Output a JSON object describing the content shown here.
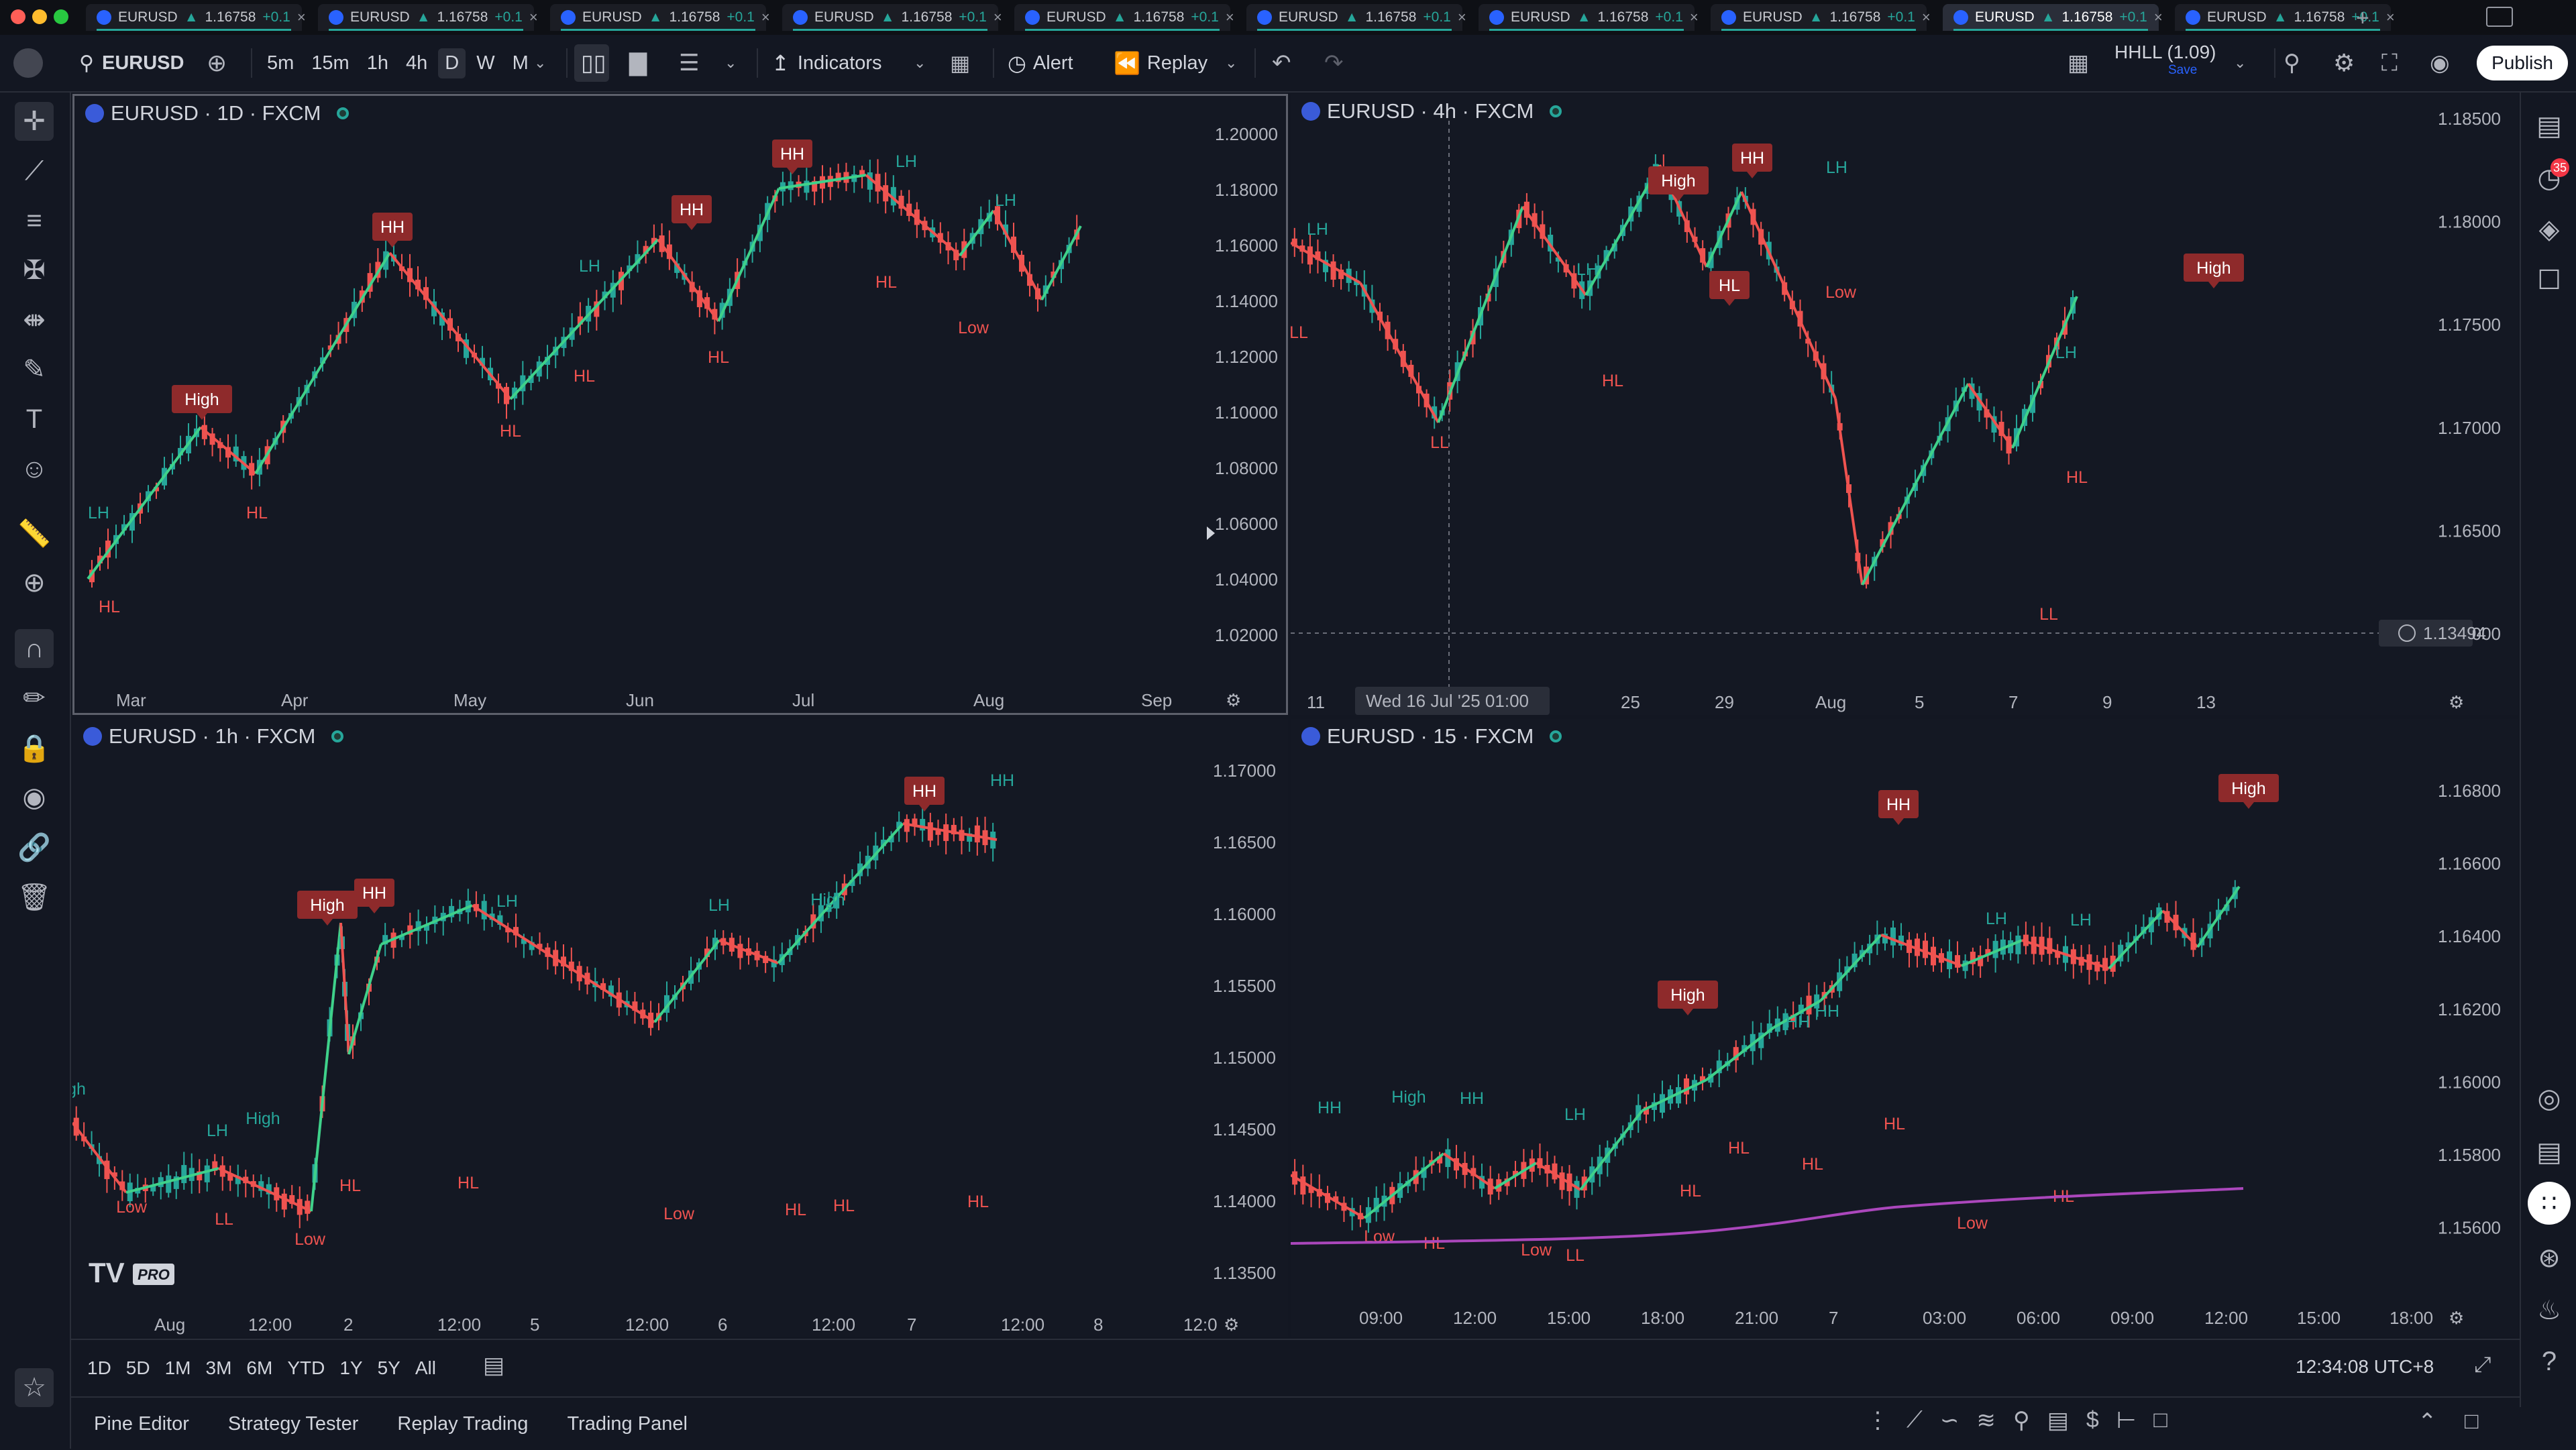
{
  "window": {
    "tabs": [
      {
        "symbol": "EURUSD",
        "price": "1.16758",
        "change": "+0.1"
      },
      {
        "symbol": "EURUSD",
        "price": "1.16758",
        "change": "+0.1"
      },
      {
        "symbol": "EURUSD",
        "price": "1.16758",
        "change": "+0.1"
      },
      {
        "symbol": "EURUSD",
        "price": "1.16758",
        "change": "+0.1"
      },
      {
        "symbol": "EURUSD",
        "price": "1.16758",
        "change": "+0.1"
      },
      {
        "symbol": "EURUSD",
        "price": "1.16758",
        "change": "+0.1"
      },
      {
        "symbol": "EURUSD",
        "price": "1.16758",
        "change": "+0.1"
      },
      {
        "symbol": "EURUSD",
        "price": "1.16758",
        "change": "+0.1"
      },
      {
        "symbol": "EURUSD",
        "price": "1.16758",
        "change": "+0.1"
      },
      {
        "symbol": "EURUSD",
        "price": "1.16758",
        "change": "+0.1"
      }
    ],
    "active_tab_index": 8
  },
  "toolbar": {
    "symbol": "EURUSD",
    "intervals": [
      "5m",
      "15m",
      "1h",
      "4h",
      "D",
      "W",
      "M"
    ],
    "active_interval": "D",
    "indicators_label": "Indicators",
    "alert_label": "Alert",
    "replay_label": "Replay",
    "layout_name": "HHLL (1.09)",
    "layout_sub": "Save",
    "publish_label": "Publish"
  },
  "right_panel": {
    "notification_count": "35"
  },
  "panes": [
    {
      "id": "p1",
      "title": "EURUSD · 1D · FXCM",
      "price_labels": [
        "1.20000",
        "1.18000",
        "1.16000",
        "1.14000",
        "1.12000",
        "1.10000",
        "1.08000",
        "1.06000",
        "1.04000",
        "1.02000"
      ],
      "time_labels": [
        "Mar",
        "Apr",
        "May",
        "Jun",
        "Jul",
        "Aug",
        "Sep"
      ],
      "tags": [
        {
          "text": "LH",
          "type": "up"
        },
        {
          "text": "HL",
          "type": "down"
        },
        {
          "text": "High",
          "type": "box"
        },
        {
          "text": "HL",
          "type": "down"
        },
        {
          "text": "HH",
          "type": "box"
        },
        {
          "text": "HL",
          "type": "down"
        },
        {
          "text": "LH",
          "type": "up"
        },
        {
          "text": "HL",
          "type": "down"
        },
        {
          "text": "HH",
          "type": "box"
        },
        {
          "text": "HL",
          "type": "down"
        },
        {
          "text": "HH",
          "type": "box"
        },
        {
          "text": "LH",
          "type": "up"
        },
        {
          "text": "HL",
          "type": "down"
        },
        {
          "text": "LH",
          "type": "up"
        },
        {
          "text": "Low",
          "type": "down"
        }
      ]
    },
    {
      "id": "p2",
      "title": "EURUSD · 4h · FXCM",
      "price_labels": [
        "1.18500",
        "1.18000",
        "1.17500",
        "1.17000",
        "1.16500",
        "1.16000",
        "1.15500",
        "1.15000",
        "1.14500",
        "1.14000"
      ],
      "crosshair_price": "1.13494",
      "crosshair_time": "Wed 16 Jul '25   01:00",
      "time_labels": [
        "11",
        "19",
        "23",
        "25",
        "29",
        "Aug",
        "5",
        "7",
        "9",
        "13"
      ],
      "tags": [
        {
          "text": "LH",
          "type": "up"
        },
        {
          "text": "LL",
          "type": "down"
        },
        {
          "text": "LL",
          "type": "down"
        },
        {
          "text": "LH",
          "type": "up"
        },
        {
          "text": "HL",
          "type": "down"
        },
        {
          "text": "High",
          "type": "box"
        },
        {
          "text": "HL",
          "type": "box"
        },
        {
          "text": "HH",
          "type": "box"
        },
        {
          "text": "LH",
          "type": "up"
        },
        {
          "text": "Low",
          "type": "down"
        },
        {
          "text": "LL",
          "type": "down"
        },
        {
          "text": "LH",
          "type": "up"
        },
        {
          "text": "HL",
          "type": "down"
        },
        {
          "text": "High",
          "type": "box"
        }
      ]
    },
    {
      "id": "p3",
      "title": "EURUSD · 1h · FXCM",
      "price_labels": [
        "1.17000",
        "1.16500",
        "1.16000",
        "1.15500",
        "1.15000",
        "1.14500",
        "1.14000",
        "1.13500"
      ],
      "time_labels": [
        "Aug",
        "12:00",
        "2",
        "12:00",
        "5",
        "12:00",
        "6",
        "12:00",
        "7",
        "12:00",
        "8",
        "12:0"
      ],
      "tags": [
        {
          "text": "gh",
          "type": "up"
        },
        {
          "text": "Low",
          "type": "down"
        },
        {
          "text": "LH",
          "type": "up"
        },
        {
          "text": "LL",
          "type": "down"
        },
        {
          "text": "High",
          "type": "up"
        },
        {
          "text": "Low",
          "type": "down"
        },
        {
          "text": "High",
          "type": "box"
        },
        {
          "text": "HH",
          "type": "box"
        },
        {
          "text": "HL",
          "type": "down"
        },
        {
          "text": "LH",
          "type": "up"
        },
        {
          "text": "HL",
          "type": "down"
        },
        {
          "text": "Low",
          "type": "down"
        },
        {
          "text": "LH",
          "type": "up"
        },
        {
          "text": "HL",
          "type": "down"
        },
        {
          "text": "High",
          "type": "up"
        },
        {
          "text": "HL",
          "type": "down"
        },
        {
          "text": "HH",
          "type": "box"
        },
        {
          "text": "HL",
          "type": "down"
        },
        {
          "text": "HH",
          "type": "up"
        }
      ],
      "watermark": "PRO"
    },
    {
      "id": "p4",
      "title": "EURUSD · 15 · FXCM",
      "price_labels": [
        "1.16800",
        "1.16600",
        "1.16400",
        "1.16200",
        "1.16000",
        "1.15800",
        "1.15600"
      ],
      "time_labels": [
        "09:00",
        "12:00",
        "15:00",
        "18:00",
        "21:00",
        "7",
        "03:00",
        "06:00",
        "09:00",
        "12:00",
        "15:00",
        "18:00"
      ],
      "tags": [
        {
          "text": "HH",
          "type": "up"
        },
        {
          "text": "Low",
          "type": "down"
        },
        {
          "text": "High",
          "type": "up"
        },
        {
          "text": "HL",
          "type": "down"
        },
        {
          "text": "HH",
          "type": "up"
        },
        {
          "text": "Low",
          "type": "down"
        },
        {
          "text": "LH",
          "type": "up"
        },
        {
          "text": "LL",
          "type": "down"
        },
        {
          "text": "High",
          "type": "box"
        },
        {
          "text": "HL",
          "type": "down"
        },
        {
          "text": "HL",
          "type": "down"
        },
        {
          "text": "HH",
          "type": "up"
        },
        {
          "text": "HH",
          "type": "up"
        },
        {
          "text": "HL",
          "type": "down"
        },
        {
          "text": "HH",
          "type": "box"
        },
        {
          "text": "HL",
          "type": "down"
        },
        {
          "text": "LH",
          "type": "up"
        },
        {
          "text": "Low",
          "type": "down"
        },
        {
          "text": "LH",
          "type": "up"
        },
        {
          "text": "HL",
          "type": "down"
        },
        {
          "text": "High",
          "type": "box"
        }
      ]
    }
  ],
  "bottom": {
    "ranges": [
      "1D",
      "5D",
      "1M",
      "3M",
      "6M",
      "YTD",
      "1Y",
      "5Y",
      "All"
    ],
    "clock": "12:34:08 UTC+8"
  },
  "panel_tabs": [
    "Pine Editor",
    "Strategy Tester",
    "Replay Trading",
    "Trading Panel"
  ],
  "colors": {
    "up": "#26a69a",
    "up_line": "#3fd18a",
    "down": "#ef5350",
    "box": "#8e2a2b",
    "bg": "#141823"
  }
}
